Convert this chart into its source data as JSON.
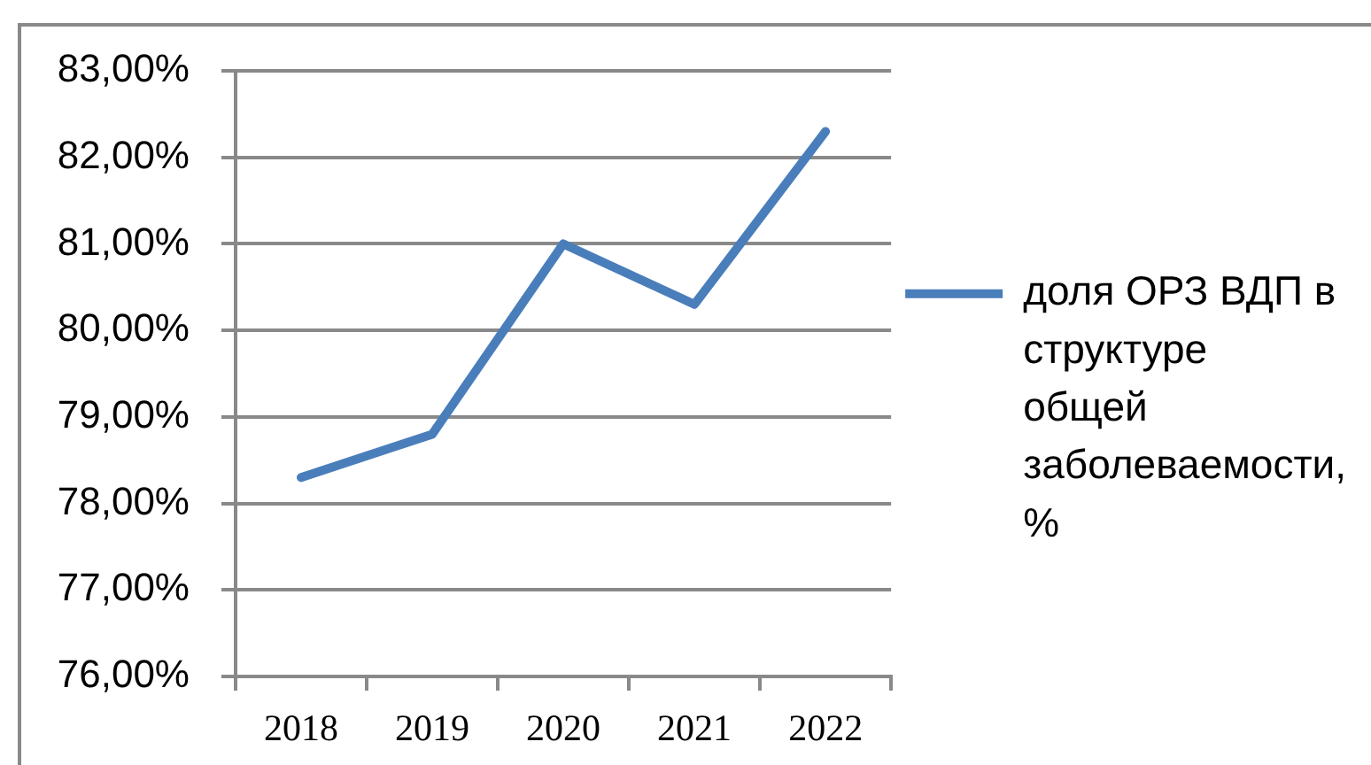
{
  "chart_data": {
    "type": "line",
    "categories": [
      "2018",
      "2019",
      "2020",
      "2021",
      "2022"
    ],
    "series": [
      {
        "name": "доля ОРЗ ВДП в структуре общей заболеваемости, %",
        "color": "#4a7ebb",
        "values": [
          78.3,
          78.8,
          81.0,
          80.3,
          82.3
        ]
      }
    ],
    "ylim": [
      76,
      83
    ],
    "yticks": [
      {
        "value": 76,
        "label": "76,00%"
      },
      {
        "value": 77,
        "label": "77,00%"
      },
      {
        "value": 78,
        "label": "78,00%"
      },
      {
        "value": 79,
        "label": "79,00%"
      },
      {
        "value": 80,
        "label": "80,00%"
      },
      {
        "value": 81,
        "label": "81,00%"
      },
      {
        "value": 82,
        "label": "82,00%"
      },
      {
        "value": 83,
        "label": "83,00%"
      }
    ],
    "grid": "y",
    "legend": "right",
    "marker": "none",
    "line_style": "solid"
  }
}
